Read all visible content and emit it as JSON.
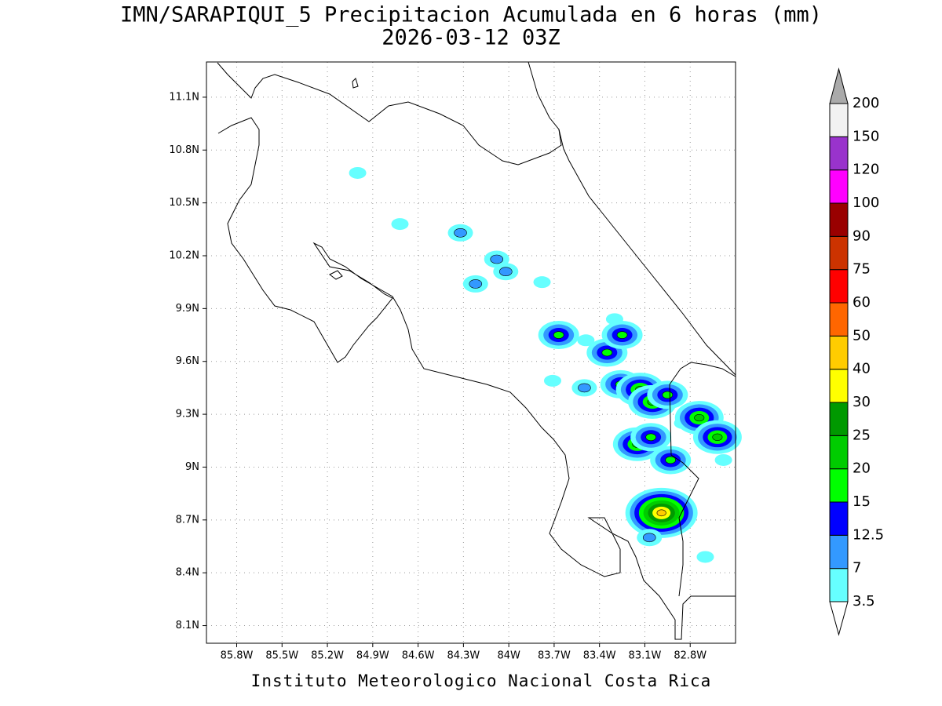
{
  "title": "IMN/SARAPIQUI_5 Precipitacion Acumulada en 6 horas (mm)",
  "subtitle": "2026-03-12 03Z",
  "footer": "Instituto Meteorologico Nacional Costa Rica",
  "grid": true,
  "xlim": [
    -86.0,
    -82.5
  ],
  "ylim": [
    8.0,
    11.3
  ],
  "xticks": [
    {
      "value": -85.8,
      "label": "85.8W"
    },
    {
      "value": -85.5,
      "label": "85.5W"
    },
    {
      "value": -85.2,
      "label": "85.2W"
    },
    {
      "value": -84.9,
      "label": "84.9W"
    },
    {
      "value": -84.6,
      "label": "84.6W"
    },
    {
      "value": -84.3,
      "label": "84.3W"
    },
    {
      "value": -84.0,
      "label": "84W"
    },
    {
      "value": -83.7,
      "label": "83.7W"
    },
    {
      "value": -83.4,
      "label": "83.4W"
    },
    {
      "value": -83.1,
      "label": "83.1W"
    },
    {
      "value": -82.8,
      "label": "82.8W"
    }
  ],
  "yticks": [
    {
      "value": 8.1,
      "label": "8.1N"
    },
    {
      "value": 8.4,
      "label": "8.4N"
    },
    {
      "value": 8.7,
      "label": "8.7N"
    },
    {
      "value": 9.0,
      "label": "9N"
    },
    {
      "value": 9.3,
      "label": "9.3N"
    },
    {
      "value": 9.6,
      "label": "9.6N"
    },
    {
      "value": 9.9,
      "label": "9.9N"
    },
    {
      "value": 10.2,
      "label": "10.2N"
    },
    {
      "value": 10.5,
      "label": "10.5N"
    },
    {
      "value": 10.8,
      "label": "10.8N"
    },
    {
      "value": 11.1,
      "label": "11.1N"
    }
  ],
  "colorbar": {
    "levels": [
      3.5,
      7,
      12.5,
      15,
      20,
      25,
      30,
      40,
      50,
      60,
      75,
      90,
      100,
      120,
      150,
      200
    ],
    "colors": [
      "#ffffff",
      "#66ffff",
      "#3399ff",
      "#0000ff",
      "#00ff00",
      "#00cc00",
      "#009900",
      "#ffff00",
      "#ffcc00",
      "#ff6600",
      "#ff0000",
      "#cc3300",
      "#990000",
      "#ff00ff",
      "#9933cc",
      "#f2f2f2",
      "#aaaaaa"
    ]
  },
  "cells": [
    {
      "lon": -85.0,
      "lat": 10.67,
      "value": 3.5
    },
    {
      "lon": -84.72,
      "lat": 10.38,
      "value": 3.5
    },
    {
      "lon": -84.32,
      "lat": 10.33,
      "value": 7
    },
    {
      "lon": -84.08,
      "lat": 10.18,
      "value": 7
    },
    {
      "lon": -84.02,
      "lat": 10.11,
      "value": 7
    },
    {
      "lon": -84.22,
      "lat": 10.04,
      "value": 7
    },
    {
      "lon": -83.78,
      "lat": 10.05,
      "value": 3.5
    },
    {
      "lon": -83.67,
      "lat": 9.75,
      "value": 15
    },
    {
      "lon": -83.49,
      "lat": 9.72,
      "value": 3.5
    },
    {
      "lon": -83.35,
      "lat": 9.65,
      "value": 15
    },
    {
      "lon": -83.25,
      "lat": 9.75,
      "value": 15
    },
    {
      "lon": -83.3,
      "lat": 9.84,
      "value": 3.5
    },
    {
      "lon": -83.71,
      "lat": 9.49,
      "value": 3.5
    },
    {
      "lon": -83.5,
      "lat": 9.45,
      "value": 7
    },
    {
      "lon": -83.26,
      "lat": 9.47,
      "value": 15
    },
    {
      "lon": -83.13,
      "lat": 9.44,
      "value": 20
    },
    {
      "lon": -83.05,
      "lat": 9.37,
      "value": 20
    },
    {
      "lon": -82.95,
      "lat": 9.41,
      "value": 15
    },
    {
      "lon": -82.85,
      "lat": 9.25,
      "value": 3.5
    },
    {
      "lon": -82.74,
      "lat": 9.28,
      "value": 20
    },
    {
      "lon": -82.62,
      "lat": 9.17,
      "value": 20
    },
    {
      "lon": -83.15,
      "lat": 9.13,
      "value": 20
    },
    {
      "lon": -83.06,
      "lat": 9.17,
      "value": 15
    },
    {
      "lon": -82.93,
      "lat": 9.04,
      "value": 15
    },
    {
      "lon": -82.58,
      "lat": 9.04,
      "value": 3.5
    },
    {
      "lon": -82.99,
      "lat": 8.74,
      "value": 40
    },
    {
      "lon": -83.07,
      "lat": 8.6,
      "value": 7
    },
    {
      "lon": -82.7,
      "lat": 8.49,
      "value": 3.5
    }
  ]
}
